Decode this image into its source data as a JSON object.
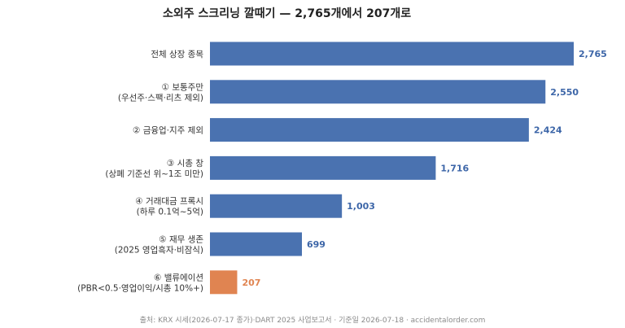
{
  "chart_data": {
    "type": "bar",
    "orientation": "horizontal",
    "title": "소외주 스크리닝 깔때기 — 2,765개에서 207개로",
    "categories": [
      [
        "전체 상장 종목"
      ],
      [
        "① 보통주만",
        "(우선주·스팩·리츠 제외)"
      ],
      [
        "② 금융업·지주 제외"
      ],
      [
        "③ 시총 창",
        "(상폐 기준선 위~1조 미만)"
      ],
      [
        "④ 거래대금 프록시",
        "(하루 0.1억~5억)"
      ],
      [
        "⑤ 재무 생존",
        "(2025 영업흑자·비잠식)"
      ],
      [
        "⑥ 밸류에이션",
        "(PBR<0.5·영업이익/시총 10%+)"
      ]
    ],
    "values": [
      2765,
      2550,
      2424,
      1716,
      1003,
      699,
      207
    ],
    "value_labels": [
      "2,765",
      "2,550",
      "2,424",
      "1,716",
      "1,003",
      "699",
      "207"
    ],
    "bar_colors": [
      "#4a72b0",
      "#4a72b0",
      "#4a72b0",
      "#4a72b0",
      "#4a72b0",
      "#4a72b0",
      "#e08451"
    ],
    "label_colors": [
      "#3d66a8",
      "#3d66a8",
      "#3d66a8",
      "#3d66a8",
      "#3d66a8",
      "#3d66a8",
      "#e08451"
    ],
    "xlim": [
      0,
      2765
    ],
    "grid": false,
    "legend": false
  },
  "footer": {
    "source": "출처: KRX 시세(2026-07-17 종가)·DART 2025 사업보고서 · 기준일 2026-07-18 · accidentalorder.com"
  }
}
